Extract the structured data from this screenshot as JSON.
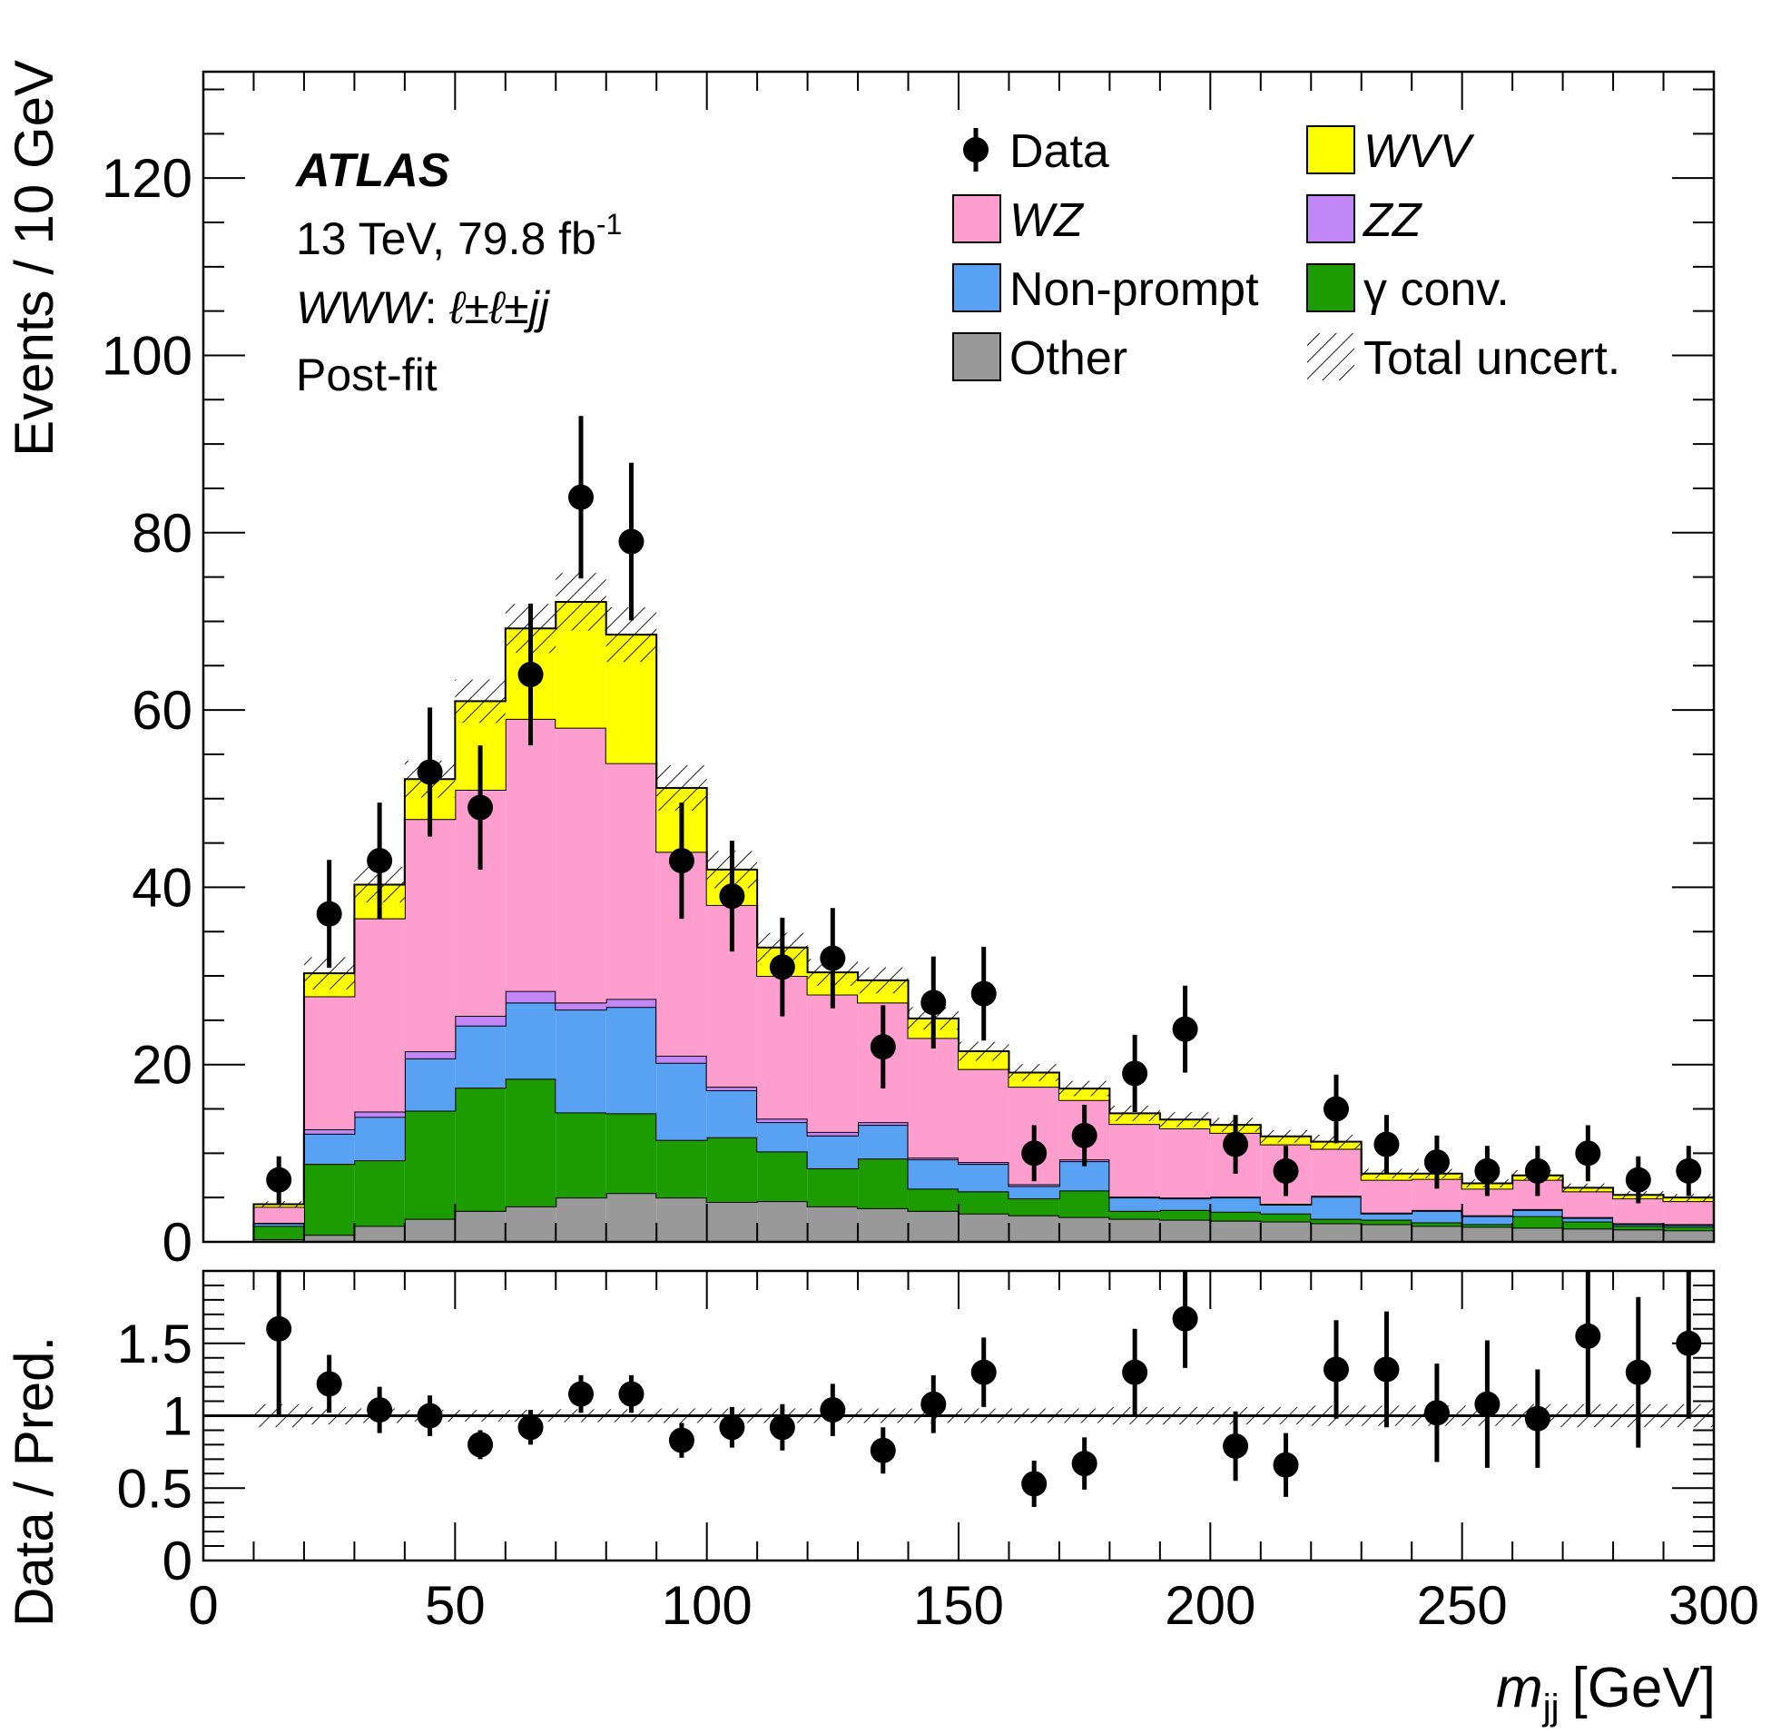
{
  "chart_data": {
    "type": "stacked-histogram-with-ratio",
    "experiment_label": "ATLAS",
    "energy_label": "13 TeV, 79.8 fb",
    "lumi_superscript": "-1",
    "channel_label_main": "WWW",
    "channel_label_sep": ": ",
    "channel_label_leptons": "ℓ±ℓ±jj",
    "fit_label": "Post-fit",
    "xlabel_main": "m",
    "xlabel_sub": "jj",
    "xlabel_unit": "[GeV]",
    "ylabel_top": "Events / 10 GeV",
    "ylabel_bottom": "Data / Pred.",
    "xlim": [
      0,
      300
    ],
    "ylim_top": [
      0,
      132
    ],
    "ylim_bottom": [
      0,
      2.0
    ],
    "x_ticks": [
      0,
      50,
      100,
      150,
      200,
      250,
      300
    ],
    "x_tick_labels": [
      "0",
      "50",
      "100",
      "150",
      "200",
      "250",
      "300"
    ],
    "y_ticks_top": [
      0,
      20,
      40,
      60,
      80,
      100,
      120
    ],
    "y_tick_labels_top": [
      "0",
      "20",
      "40",
      "60",
      "80",
      "100",
      "120"
    ],
    "y_ticks_bottom": [
      0,
      0.5,
      1,
      1.5
    ],
    "y_tick_labels_bottom": [
      "0",
      "0.5",
      "1",
      "1.5"
    ],
    "bin_edges": [
      10,
      20,
      30,
      40,
      50,
      60,
      70,
      80,
      90,
      100,
      110,
      120,
      130,
      140,
      150,
      160,
      170,
      180,
      190,
      200,
      210,
      220,
      230,
      240,
      250,
      260,
      270,
      280,
      290,
      300
    ],
    "stack": [
      {
        "name": "Other",
        "color": "#999999",
        "values": [
          0.3,
          0.8,
          1.8,
          2.6,
          3.5,
          4.0,
          5.0,
          5.5,
          5.0,
          4.5,
          4.6,
          4.0,
          3.8,
          3.5,
          3.2,
          3.0,
          2.8,
          2.6,
          2.5,
          2.4,
          2.3,
          2.1,
          2.0,
          1.8,
          1.7,
          1.6,
          1.5,
          1.4,
          1.3
        ]
      },
      {
        "name": "γ conv.",
        "color": "#1c9c00",
        "values": [
          1.5,
          8.0,
          7.4,
          12.2,
          13.9,
          14.4,
          9.6,
          9.0,
          6.5,
          7.3,
          5.6,
          4.3,
          5.6,
          2.5,
          2.5,
          1.9,
          3.0,
          0.9,
          1.1,
          1.0,
          0.9,
          0.5,
          0.5,
          0.4,
          0.3,
          1.3,
          0.8,
          0.4,
          0.4
        ]
      },
      {
        "name": "Non-prompt",
        "color": "#59a1f2",
        "values": [
          0.3,
          3.4,
          4.9,
          5.9,
          7.0,
          8.6,
          11.6,
          12.0,
          8.7,
          5.3,
          3.3,
          3.7,
          3.8,
          3.3,
          3.1,
          1.4,
          3.3,
          1.5,
          1.3,
          1.6,
          1.0,
          2.5,
          0.7,
          1.3,
          0.9,
          0.7,
          0.4,
          0.2,
          0.2
        ]
      },
      {
        "name": "ZZ",
        "color": "#c187f7",
        "values": [
          0.05,
          0.5,
          0.6,
          0.8,
          1.1,
          1.3,
          0.8,
          0.9,
          0.8,
          0.4,
          0.4,
          0.4,
          0.3,
          0.2,
          0.2,
          0.2,
          0.2,
          0.1,
          0.1,
          0.1,
          0.1,
          0.1,
          0.1,
          0.1,
          0.1,
          0.1,
          0.1,
          0.1,
          0.1
        ]
      },
      {
        "name": "WZ",
        "color": "#fe9ece",
        "values": [
          1.8,
          15.0,
          21.8,
          26.2,
          25.5,
          30.7,
          31.0,
          26.6,
          23.0,
          20.5,
          16.1,
          15.5,
          13.5,
          13.5,
          10.5,
          11.0,
          6.7,
          8.2,
          7.8,
          7.2,
          6.7,
          5.3,
          3.7,
          3.5,
          3.0,
          3.3,
          2.9,
          2.8,
          2.6
        ]
      },
      {
        "name": "WVV",
        "color": "#ffff00",
        "values": [
          0.3,
          2.6,
          3.8,
          4.5,
          10.0,
          10.2,
          14.2,
          14.5,
          7.2,
          4.0,
          3.2,
          2.5,
          2.5,
          2.2,
          2.0,
          1.6,
          1.3,
          1.2,
          1.0,
          0.9,
          0.9,
          0.8,
          0.7,
          0.6,
          0.6,
          0.5,
          0.4,
          0.4,
          0.4
        ]
      }
    ],
    "uncertainty_rel": [
      0.08,
      0.06,
      0.05,
      0.04,
      0.04,
      0.04,
      0.045,
      0.045,
      0.05,
      0.05,
      0.05,
      0.05,
      0.05,
      0.05,
      0.05,
      0.05,
      0.05,
      0.06,
      0.06,
      0.06,
      0.06,
      0.07,
      0.07,
      0.07,
      0.07,
      0.08,
      0.08,
      0.08,
      0.08
    ],
    "data_x": [
      15,
      25,
      35,
      45,
      55,
      65,
      75,
      85,
      95,
      105,
      115,
      125,
      135,
      145,
      155,
      165,
      175,
      185,
      195,
      205,
      215,
      225,
      235,
      245,
      255,
      265,
      275,
      285,
      295
    ],
    "data_y": [
      7,
      37,
      43,
      53,
      49,
      64,
      84,
      79,
      43,
      39,
      31,
      32,
      22,
      27,
      28,
      10,
      12,
      19,
      24,
      11,
      8,
      15,
      11,
      9,
      8,
      8,
      10,
      7,
      8
    ],
    "ratio_y": [
      1.6,
      1.22,
      1.04,
      1.0,
      0.8,
      0.92,
      1.15,
      1.15,
      0.83,
      0.92,
      0.92,
      1.04,
      0.76,
      1.08,
      1.3,
      0.53,
      0.67,
      1.3,
      1.67,
      0.79,
      0.66,
      1.32,
      1.32,
      1.02,
      1.08,
      0.98,
      1.55,
      1.3,
      1.5
    ],
    "ratio_err": [
      0.6,
      0.2,
      0.16,
      0.14,
      0.1,
      0.12,
      0.13,
      0.13,
      0.12,
      0.14,
      0.16,
      0.18,
      0.16,
      0.2,
      0.24,
      0.16,
      0.18,
      0.3,
      0.34,
      0.24,
      0.22,
      0.34,
      0.4,
      0.34,
      0.44,
      0.34,
      0.55,
      0.52,
      0.52
    ],
    "legend": [
      {
        "label": "Data",
        "kind": "marker",
        "italic": false
      },
      {
        "label": "WVV",
        "kind": "fill",
        "color": "#ffff00",
        "italic": true
      },
      {
        "label": "WZ",
        "kind": "fill",
        "color": "#fe9ece",
        "italic": true
      },
      {
        "label": "ZZ",
        "kind": "fill",
        "color": "#c187f7",
        "italic": true
      },
      {
        "label": "Non-prompt",
        "kind": "fill",
        "color": "#59a1f2",
        "italic": false
      },
      {
        "label": "γ conv.",
        "kind": "fill",
        "color": "#1c9c00",
        "italic": false
      },
      {
        "label": "Other",
        "kind": "fill",
        "color": "#999999",
        "italic": false
      },
      {
        "label": "Total uncert.",
        "kind": "hatch",
        "italic": false
      }
    ]
  }
}
